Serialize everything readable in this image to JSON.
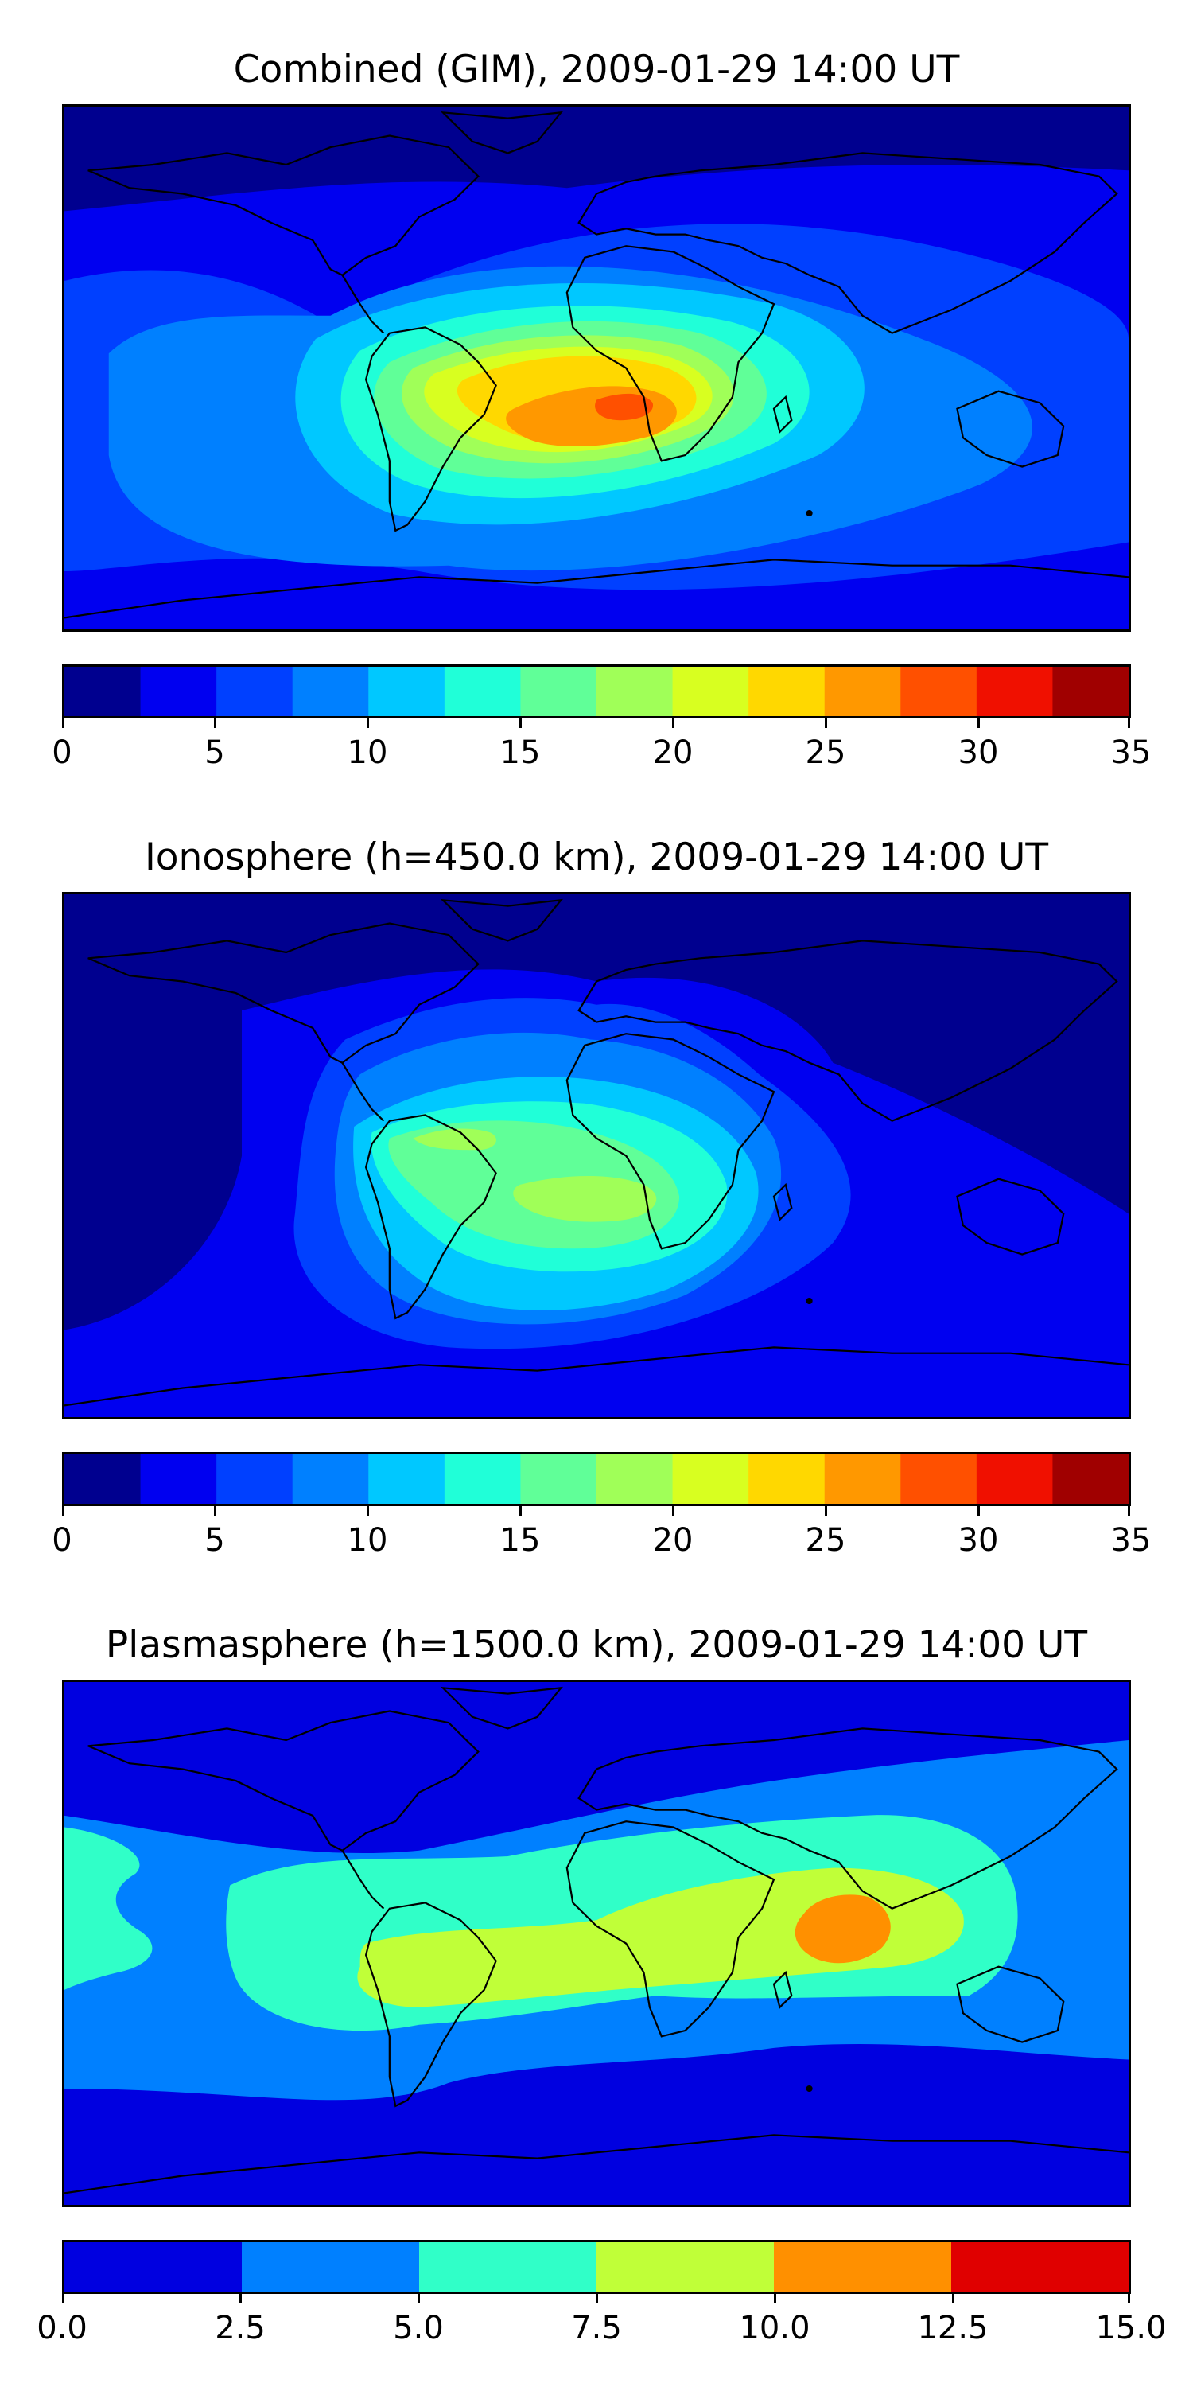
{
  "chart_data": [
    {
      "type": "heatmap",
      "title": "Combined (GIM), 2009-01-29 14:00 UT",
      "colorbar": {
        "levels": [
          0,
          2.5,
          5,
          7.5,
          10,
          12.5,
          15,
          17.5,
          20,
          22.5,
          25,
          27.5,
          30,
          32.5,
          35
        ],
        "colors": [
          "#00008f",
          "#0000f0",
          "#0040ff",
          "#0080ff",
          "#00c8ff",
          "#20ffd8",
          "#60ff98",
          "#a0ff58",
          "#d8ff20",
          "#ffd800",
          "#ff9800",
          "#ff5000",
          "#f01000",
          "#a00000"
        ],
        "ticks": [
          0,
          5,
          10,
          15,
          20,
          25,
          30,
          35
        ],
        "tick_labels": [
          "0",
          "5",
          "10",
          "15",
          "20",
          "25",
          "30",
          "35"
        ]
      },
      "peak_region": "South Atlantic / southern Africa",
      "max_level": "27.5-30",
      "background_level": "0-2.5"
    },
    {
      "type": "heatmap",
      "title": "Ionosphere  (h=450.0 km), 2009-01-29 14:00 UT",
      "colorbar": {
        "levels": [
          0,
          2.5,
          5,
          7.5,
          10,
          12.5,
          15,
          17.5,
          20,
          22.5,
          25,
          27.5,
          30,
          32.5,
          35
        ],
        "colors": [
          "#00008f",
          "#0000f0",
          "#0040ff",
          "#0080ff",
          "#00c8ff",
          "#20ffd8",
          "#60ff98",
          "#a0ff58",
          "#d8ff20",
          "#ffd800",
          "#ff9800",
          "#ff5000",
          "#f01000",
          "#a00000"
        ],
        "ticks": [
          0,
          5,
          10,
          15,
          20,
          25,
          30,
          35
        ],
        "tick_labels": [
          "0",
          "5",
          "10",
          "15",
          "20",
          "25",
          "30",
          "35"
        ]
      },
      "peak_region": "South America / South Atlantic",
      "max_level": "17.5-20",
      "background_level": "0-2.5"
    },
    {
      "type": "heatmap",
      "title": "Plasmasphere (h=1500.0 km), 2009-01-29 14:00 UT",
      "colorbar": {
        "levels": [
          0,
          2.5,
          5,
          7.5,
          10,
          12.5,
          15
        ],
        "colors": [
          "#0000e0",
          "#0080ff",
          "#30ffc8",
          "#c0ff38",
          "#ff9000",
          "#e00000"
        ],
        "ticks": [
          0.0,
          2.5,
          5.0,
          7.5,
          10.0,
          12.5,
          15.0
        ],
        "tick_labels": [
          "0.0",
          "2.5",
          "5.0",
          "7.5",
          "10.0",
          "12.5",
          "15.0"
        ]
      },
      "peak_region": "Indian Ocean (south of India)",
      "max_level": "10-12.5",
      "background_level": "0-2.5"
    }
  ]
}
